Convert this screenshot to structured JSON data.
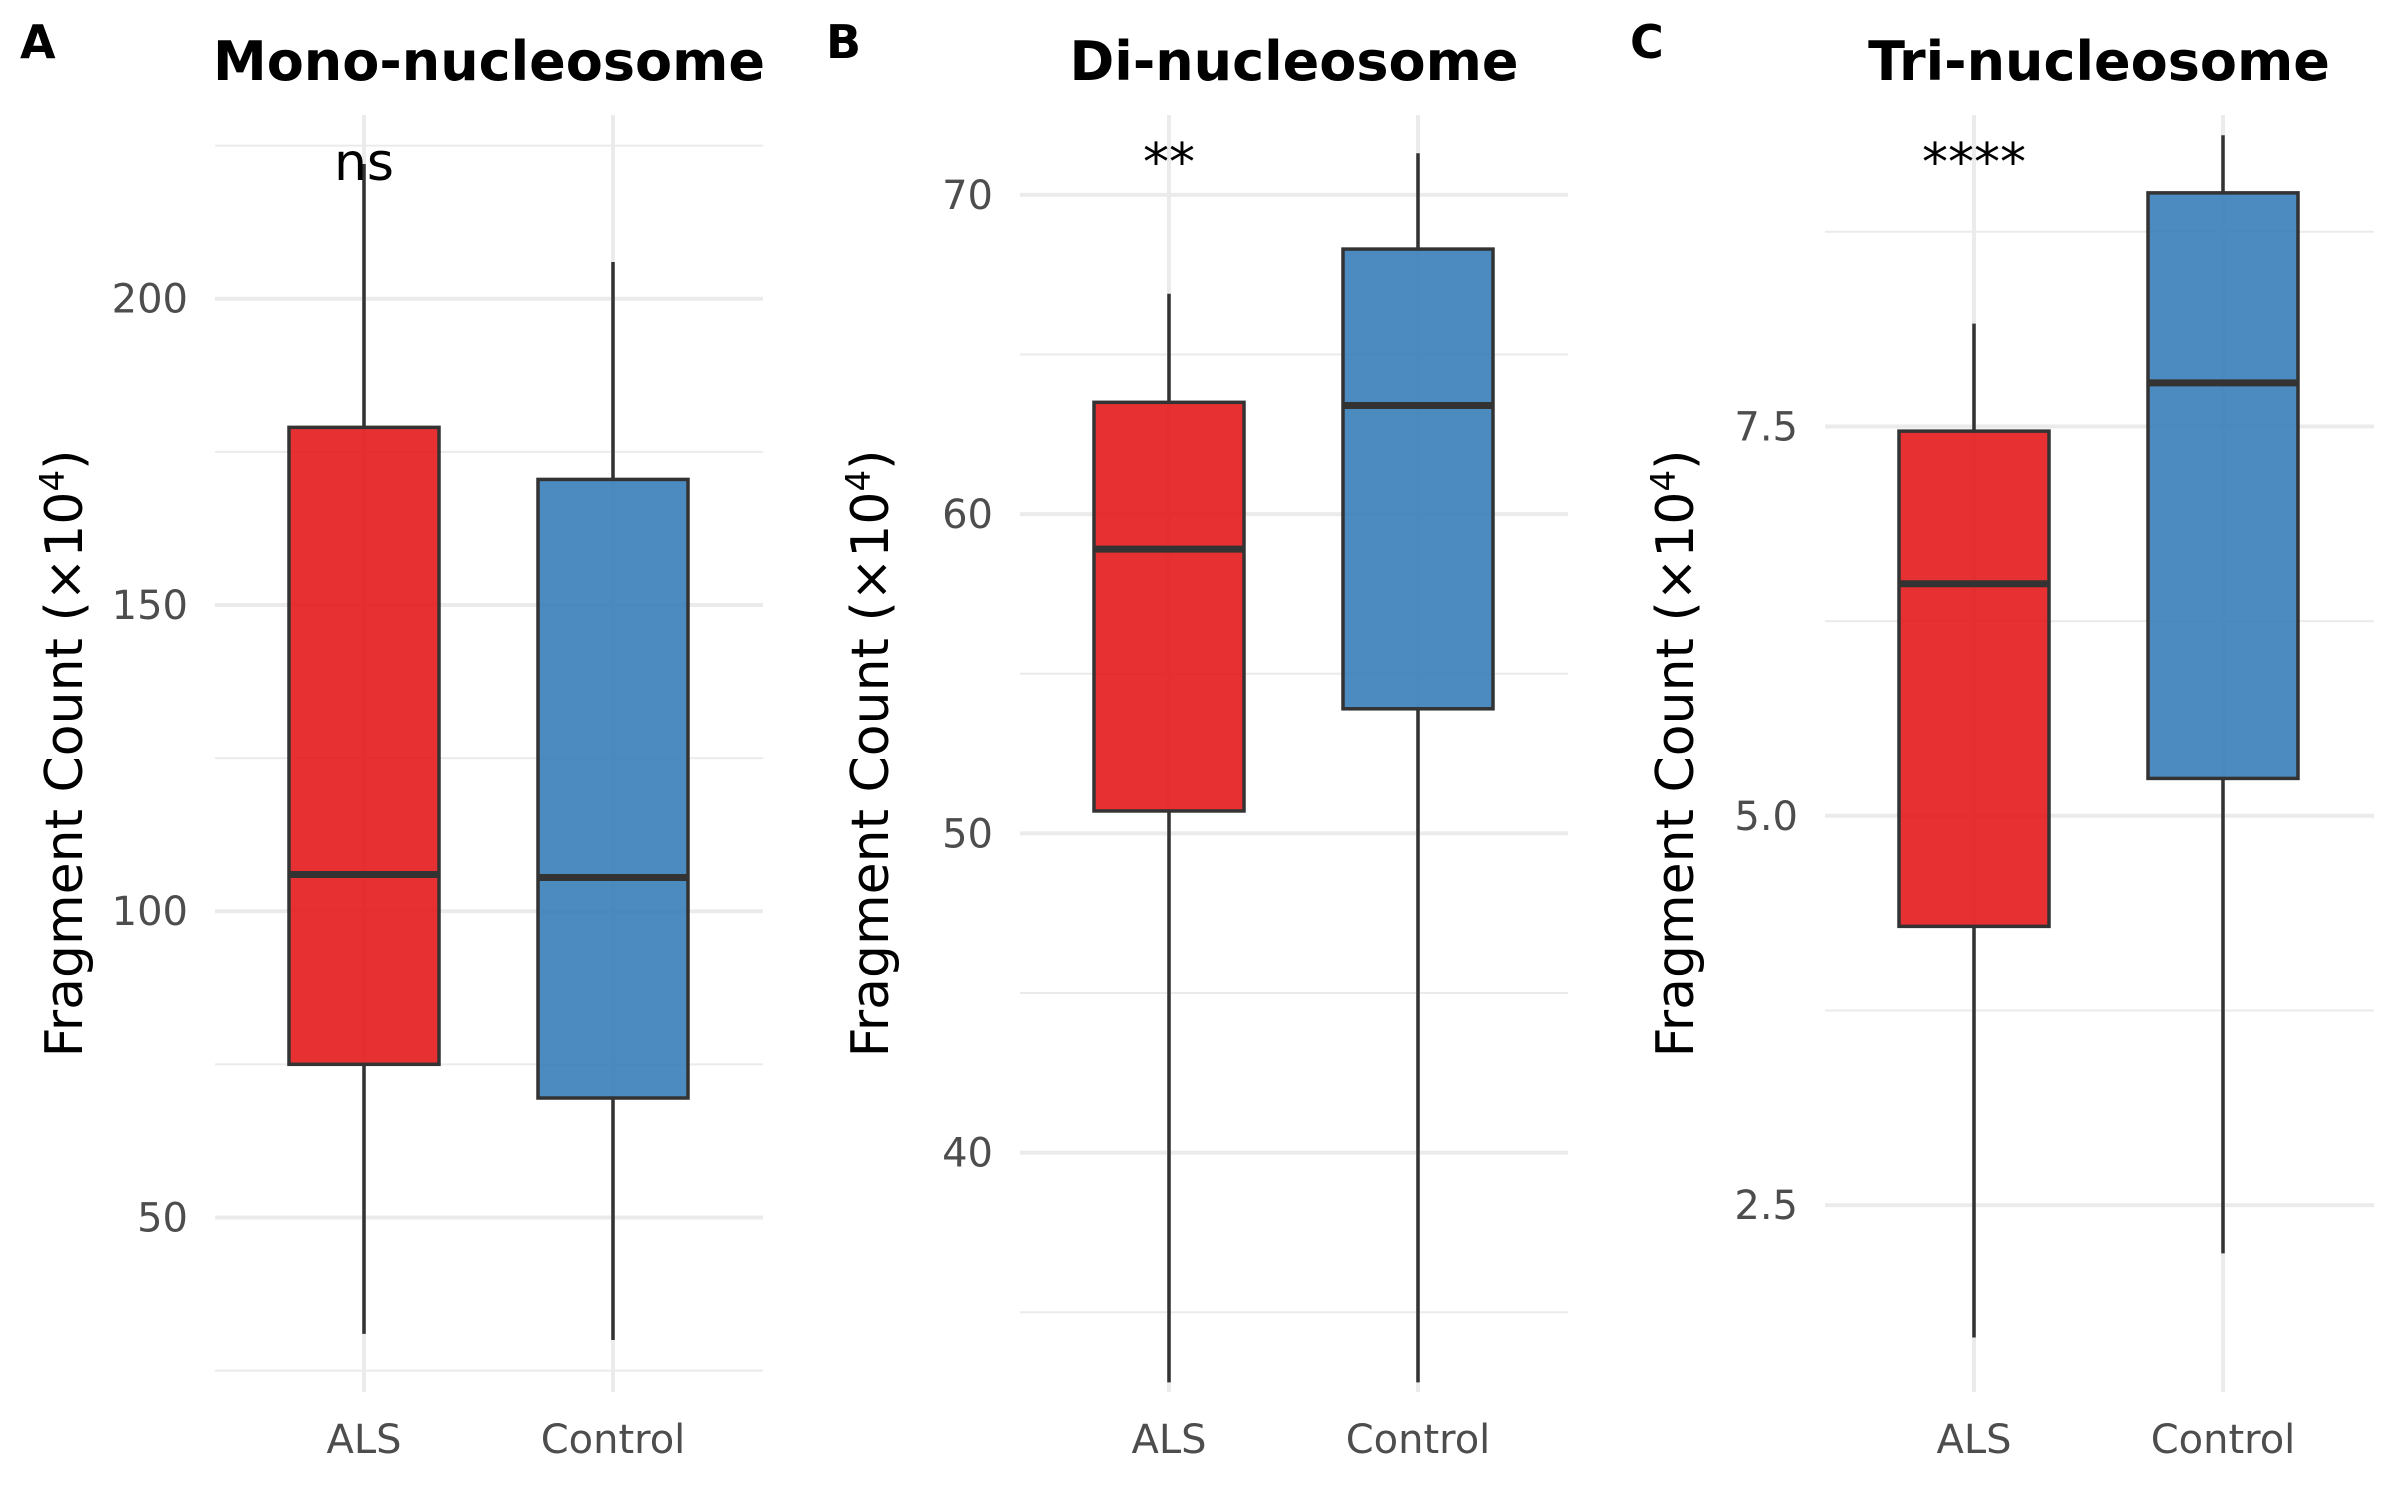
{
  "figure": {
    "panels": [
      {
        "letter": "A",
        "title": "Mono-nucleosome",
        "ylabel": "Fragment Count (×10",
        "ylabel_sup": "4",
        "ylabel_close": ")",
        "significance": "ns"
      },
      {
        "letter": "B",
        "title": "Di-nucleosome",
        "ylabel": "Fragment Count (×10",
        "ylabel_sup": "4",
        "ylabel_close": ")",
        "significance": "**"
      },
      {
        "letter": "C",
        "title": "Tri-nucleosome",
        "ylabel": "Fragment Count (×10",
        "ylabel_sup": "4",
        "ylabel_close": ")",
        "significance": "****"
      }
    ]
  },
  "colors": {
    "ALS": "#E41A1C",
    "Control": "#377EB8"
  },
  "chart_data": [
    {
      "type": "box",
      "title": "Mono-nucleosome",
      "xlabel": "",
      "ylabel": "Fragment Count (×10^4)",
      "categories": [
        "ALS",
        "Control"
      ],
      "ylim": [
        21.5,
        230
      ],
      "yticks": [
        50,
        100,
        150,
        200
      ],
      "ytick_labels": [
        "50",
        "100",
        "150",
        "200"
      ],
      "minor_yticks": [
        25,
        75,
        125,
        175,
        225
      ],
      "boxes": [
        {
          "name": "ALS",
          "min": 31,
          "q1": 75,
          "median": 106,
          "q3": 179,
          "max": 222
        },
        {
          "name": "Control",
          "min": 30,
          "q1": 69.5,
          "median": 105.5,
          "q3": 170.5,
          "max": 206
        }
      ],
      "significance": "ns",
      "grid": true
    },
    {
      "type": "box",
      "title": "Di-nucleosome",
      "xlabel": "",
      "ylabel": "Fragment Count (×10^4)",
      "categories": [
        "ALS",
        "Control"
      ],
      "ylim": [
        32.5,
        72.5
      ],
      "yticks": [
        40,
        50,
        60,
        70
      ],
      "ytick_labels": [
        "40",
        "50",
        "60",
        "70"
      ],
      "minor_yticks": [
        35,
        45,
        55,
        65
      ],
      "boxes": [
        {
          "name": "ALS",
          "min": 32.8,
          "q1": 50.7,
          "median": 58.9,
          "q3": 63.5,
          "max": 66.9
        },
        {
          "name": "Control",
          "min": 32.8,
          "q1": 53.9,
          "median": 63.4,
          "q3": 68.3,
          "max": 71.3
        }
      ],
      "significance": "**",
      "grid": true
    },
    {
      "type": "box",
      "title": "Tri-nucleosome",
      "xlabel": "",
      "ylabel": "Fragment Count (×10^4)",
      "categories": [
        "ALS",
        "Control"
      ],
      "ylim": [
        1.3,
        9.5
      ],
      "yticks": [
        2.5,
        5.0,
        7.5
      ],
      "ytick_labels": [
        "2.5",
        "5.0",
        "7.5"
      ],
      "minor_yticks": [
        3.75,
        6.25,
        8.75
      ],
      "boxes": [
        {
          "name": "ALS",
          "min": 1.65,
          "q1": 4.29,
          "median": 6.49,
          "q3": 7.47,
          "max": 8.16
        },
        {
          "name": "Control",
          "min": 2.19,
          "q1": 5.24,
          "median": 7.78,
          "q3": 9.0,
          "max": 9.37
        }
      ],
      "significance": "****",
      "grid": true
    }
  ]
}
